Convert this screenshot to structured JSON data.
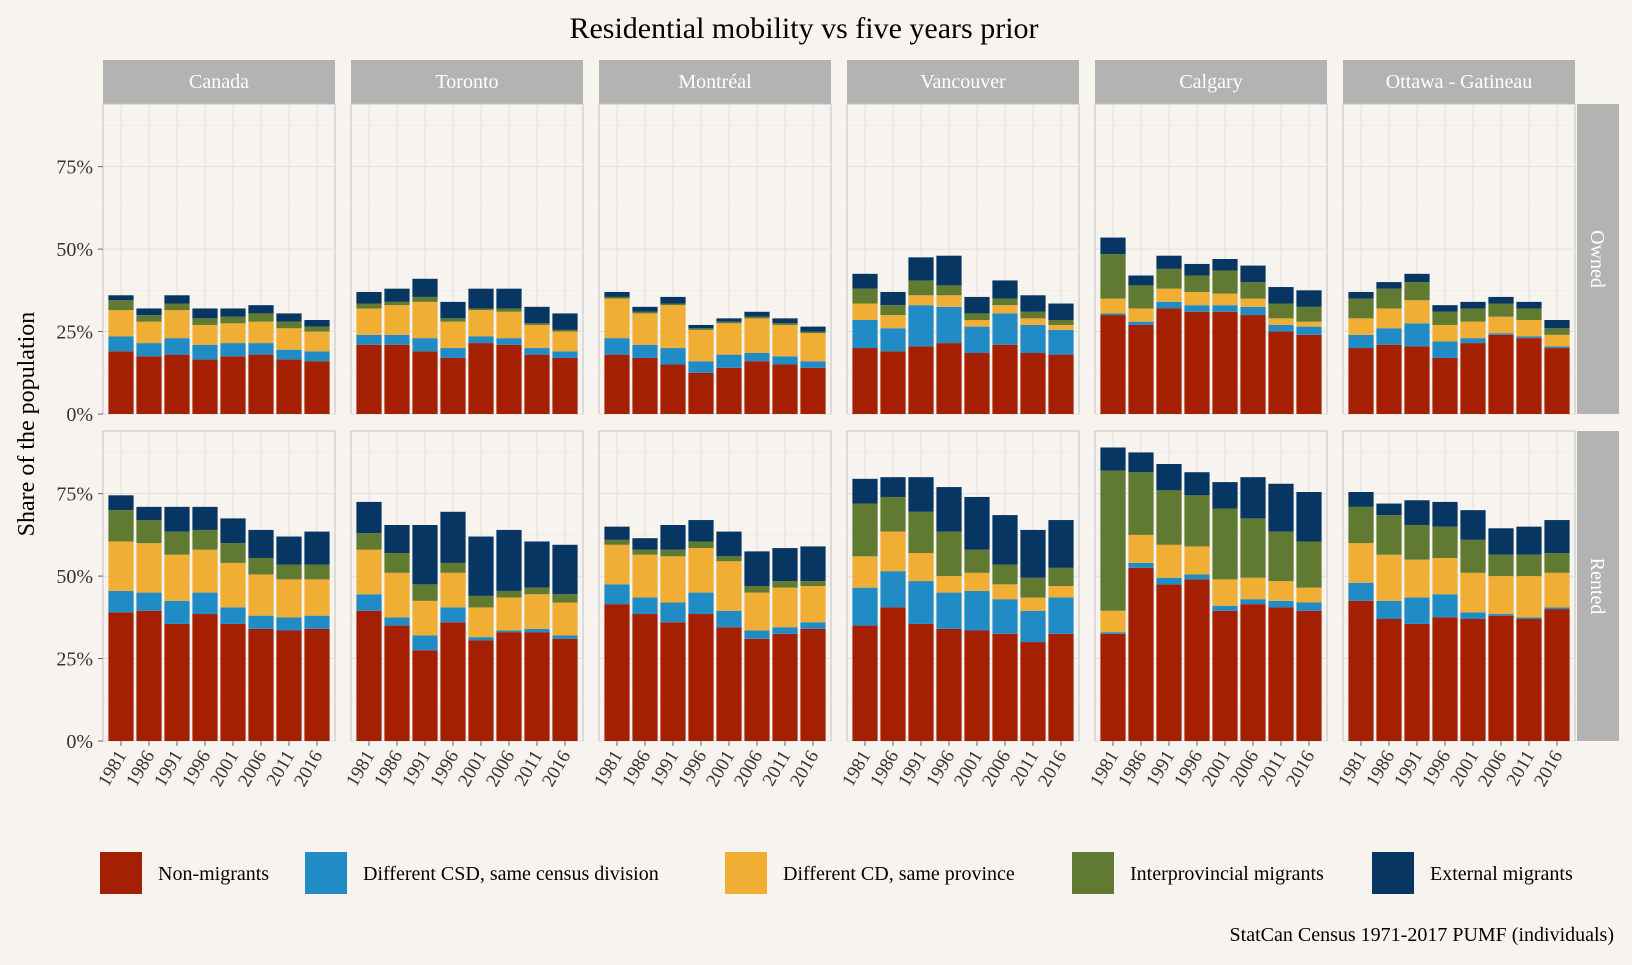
{
  "chart_data": {
    "type": "bar",
    "stacked": true,
    "title": "Residential mobility vs five years prior",
    "ylabel": "Share of the population",
    "xlabel": "",
    "caption": "StatCan Census 1971-2017 PUMF (individuals)",
    "ylim": [
      0,
      0.94
    ],
    "yticks": [
      0,
      0.25,
      0.5,
      0.75
    ],
    "ytick_labels": [
      "0%",
      "25%",
      "50%",
      "75%"
    ],
    "grid": true,
    "legend_position": "bottom",
    "x": [
      "1981",
      "1986",
      "1991",
      "1996",
      "2001",
      "2006",
      "2011",
      "2016"
    ],
    "columns": [
      "Canada",
      "Toronto",
      "Montréal",
      "Vancouver",
      "Calgary",
      "Ottawa - Gatineau"
    ],
    "rows": [
      "Owned",
      "Rented"
    ],
    "series": [
      {
        "name": "Non-migrants",
        "color": "#a51f02"
      },
      {
        "name": "Different CSD, same census division",
        "color": "#208bc5"
      },
      {
        "name": "Different CD, same province",
        "color": "#f0ae35"
      },
      {
        "name": "Interprovincial migrants",
        "color": "#617a32"
      },
      {
        "name": "External migrants",
        "color": "#073662"
      }
    ],
    "panels": [
      {
        "column": "Canada",
        "row": "Owned",
        "values": [
          [
            19,
            17.5,
            18,
            16.5,
            17.5,
            18,
            16.5,
            16
          ],
          [
            4.5,
            4,
            5,
            4.5,
            4,
            3.5,
            3,
            3
          ],
          [
            8,
            6.5,
            8.5,
            6,
            6,
            6.5,
            6.5,
            6
          ],
          [
            3,
            2,
            2,
            2,
            2,
            2.5,
            2,
            1.5
          ],
          [
            1.5,
            2,
            2.5,
            3,
            2.5,
            2.5,
            2.5,
            2
          ]
        ]
      },
      {
        "column": "Toronto",
        "row": "Owned",
        "values": [
          [
            21,
            21,
            19,
            17,
            21.5,
            21,
            18,
            17
          ],
          [
            3,
            3,
            4,
            3,
            2,
            2,
            2,
            2
          ],
          [
            8,
            9,
            11,
            8,
            8,
            8,
            7,
            6
          ],
          [
            1.5,
            1,
            1.5,
            1,
            0.5,
            1,
            0.5,
            0.5
          ],
          [
            3.5,
            4,
            5.5,
            5,
            6,
            6,
            5,
            5
          ]
        ]
      },
      {
        "column": "Montréal",
        "row": "Owned",
        "values": [
          [
            18,
            17,
            15,
            12.5,
            14,
            16,
            15,
            14
          ],
          [
            5,
            4,
            5,
            3.5,
            4,
            2.5,
            2.5,
            2
          ],
          [
            12,
            9.5,
            13,
            9.5,
            9.5,
            10.5,
            9.5,
            8.5
          ],
          [
            0.5,
            0.5,
            0.5,
            0.5,
            0.5,
            0.5,
            0.5,
            0.5
          ],
          [
            1.5,
            1.5,
            2,
            1,
            1,
            1.5,
            1.5,
            1.5
          ]
        ]
      },
      {
        "column": "Vancouver",
        "row": "Owned",
        "values": [
          [
            20,
            19,
            20.5,
            21.5,
            18.5,
            21,
            18.5,
            18
          ],
          [
            8.5,
            7,
            12.5,
            11,
            8,
            9.5,
            8.5,
            7.5
          ],
          [
            5,
            4,
            3,
            3.5,
            2,
            2.5,
            2,
            1.5
          ],
          [
            4.5,
            3,
            4.5,
            3,
            2,
            2,
            2,
            1.5
          ],
          [
            4.5,
            4,
            7,
            9,
            5,
            5.5,
            5,
            5
          ]
        ]
      },
      {
        "column": "Calgary",
        "row": "Owned",
        "values": [
          [
            30,
            27,
            32,
            31,
            31,
            30,
            25,
            24
          ],
          [
            0.5,
            1,
            2,
            2,
            2,
            2.5,
            2,
            2.5
          ],
          [
            4.5,
            4,
            4,
            4,
            3.5,
            2.5,
            2,
            1.5
          ],
          [
            13.5,
            7,
            6,
            5,
            7,
            5,
            4.5,
            4.5
          ],
          [
            5,
            3,
            4,
            3.5,
            3.5,
            5,
            5,
            5
          ]
        ]
      },
      {
        "column": "Ottawa - Gatineau",
        "row": "Owned",
        "values": [
          [
            20,
            21,
            20.5,
            17,
            21.5,
            24,
            23,
            20
          ],
          [
            4,
            5,
            7,
            5,
            1.5,
            0.5,
            0.5,
            0.5
          ],
          [
            5,
            6,
            7,
            5,
            5,
            5,
            5,
            3.5
          ],
          [
            6,
            6,
            5.5,
            4,
            4,
            4,
            3.5,
            2
          ],
          [
            2,
            2,
            2.5,
            2,
            2,
            2,
            2,
            2.5
          ]
        ]
      },
      {
        "column": "Canada",
        "row": "Rented",
        "values": [
          [
            39,
            39.5,
            35.5,
            38.5,
            35.5,
            34,
            33.5,
            34
          ],
          [
            6.5,
            5.5,
            7,
            6.5,
            5,
            4,
            4,
            4
          ],
          [
            15,
            15,
            14,
            13,
            13.5,
            12.5,
            11.5,
            11
          ],
          [
            9.5,
            7,
            7,
            6,
            6,
            5,
            4.5,
            4.5
          ],
          [
            4.5,
            4,
            7.5,
            7,
            7.5,
            8.5,
            8.5,
            10
          ]
        ]
      },
      {
        "column": "Toronto",
        "row": "Rented",
        "values": [
          [
            39.5,
            35,
            27.5,
            36,
            30.5,
            33,
            33,
            31
          ],
          [
            5,
            2.5,
            4.5,
            4.5,
            1,
            0.5,
            1,
            1
          ],
          [
            13.5,
            13.5,
            10.5,
            10.5,
            9,
            10,
            10.5,
            10
          ],
          [
            5,
            6,
            5,
            3,
            3.5,
            2,
            2,
            2.5
          ],
          [
            9.5,
            8.5,
            18,
            15.5,
            18,
            18.5,
            14,
            15
          ]
        ]
      },
      {
        "column": "Montréal",
        "row": "Rented",
        "values": [
          [
            41.5,
            38.5,
            36,
            38.5,
            34.5,
            31,
            32.5,
            34
          ],
          [
            6,
            5,
            6,
            6.5,
            5,
            2.5,
            2,
            2
          ],
          [
            12,
            13,
            14,
            13.5,
            15,
            11.5,
            12,
            11
          ],
          [
            1.5,
            1.5,
            2,
            2,
            1.5,
            2,
            2,
            1.5
          ],
          [
            4,
            3.5,
            7.5,
            6.5,
            7.5,
            10.5,
            10,
            10.5
          ]
        ]
      },
      {
        "column": "Vancouver",
        "row": "Rented",
        "values": [
          [
            35,
            40.5,
            35.5,
            34,
            33.5,
            32.5,
            30,
            32.5
          ],
          [
            11.5,
            11,
            13,
            11,
            12,
            10.5,
            9.5,
            11
          ],
          [
            9.5,
            12,
            8.5,
            5,
            5.5,
            4.5,
            4,
            3.5
          ],
          [
            16,
            10.5,
            12.5,
            13.5,
            7,
            6,
            6,
            5.5
          ],
          [
            7.5,
            6,
            10.5,
            13.5,
            16,
            15,
            14.5,
            14.5
          ]
        ]
      },
      {
        "column": "Calgary",
        "row": "Rented",
        "values": [
          [
            32.5,
            52.5,
            47.5,
            49,
            39.5,
            41.5,
            40.5,
            39.5
          ],
          [
            0.5,
            1.5,
            2,
            1.5,
            1.5,
            1.5,
            2,
            2.5
          ],
          [
            6.5,
            8.5,
            10,
            8.5,
            8,
            6.5,
            6,
            4.5
          ],
          [
            42.5,
            19,
            16.5,
            15.5,
            21.5,
            18,
            15,
            14
          ],
          [
            7,
            6,
            8,
            7,
            8,
            12.5,
            14.5,
            15
          ]
        ]
      },
      {
        "column": "Ottawa - Gatineau",
        "row": "Rented",
        "values": [
          [
            42.5,
            37,
            35.5,
            37.5,
            37,
            38,
            37,
            40
          ],
          [
            5.5,
            5.5,
            8,
            7,
            2,
            0.5,
            0.5,
            0.5
          ],
          [
            12,
            14,
            11.5,
            11,
            12,
            11.5,
            12.5,
            10.5
          ],
          [
            11,
            12,
            10.5,
            9.5,
            10,
            6.5,
            6.5,
            6
          ],
          [
            4.5,
            3.5,
            7.5,
            7.5,
            9,
            8,
            8.5,
            10
          ]
        ]
      }
    ]
  }
}
